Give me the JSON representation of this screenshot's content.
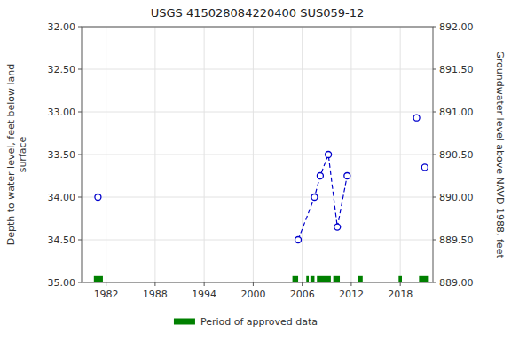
{
  "chart_data": {
    "type": "line",
    "title": "USGS 415028084220400 SUS059-12",
    "y_label": "Depth to water level, feet below land\nsurface",
    "y2_label": "Groundwater level above NAVD 1988, feet",
    "xlim": [
      1979,
      2022
    ],
    "ylim": [
      35.0,
      32.0
    ],
    "y2lim": [
      889.0,
      892.0
    ],
    "xticks": [
      1982,
      1988,
      1994,
      2000,
      2006,
      2012,
      2018
    ],
    "yticks": [
      {
        "value": 32.0,
        "label": "32.00"
      },
      {
        "value": 32.5,
        "label": "32.50"
      },
      {
        "value": 33.0,
        "label": "33.00"
      },
      {
        "value": 33.5,
        "label": "33.50"
      },
      {
        "value": 34.0,
        "label": "34.00"
      },
      {
        "value": 34.5,
        "label": "34.50"
      },
      {
        "value": 35.0,
        "label": "35.00"
      }
    ],
    "y2ticks": [
      {
        "value": 889.0,
        "label": "889.00"
      },
      {
        "value": 889.5,
        "label": "889.50"
      },
      {
        "value": 890.0,
        "label": "890.00"
      },
      {
        "value": 890.5,
        "label": "890.50"
      },
      {
        "value": 891.0,
        "label": "891.00"
      },
      {
        "value": 891.5,
        "label": "891.50"
      },
      {
        "value": 892.0,
        "label": "892.00"
      }
    ],
    "grid": true,
    "legend": "bottom",
    "series": [
      {
        "type": "scatter",
        "color": "#0000cc",
        "marker": "circle",
        "x": [
          1981.0,
          2020.0,
          2021.0
        ],
        "values": [
          34.0,
          33.07,
          33.65
        ]
      },
      {
        "type": "line",
        "color": "#0000cc",
        "marker": "circle",
        "line_style": "dashed",
        "x": [
          2005.5,
          2007.5,
          2008.2,
          2009.2,
          2010.3,
          2011.5
        ],
        "values": [
          34.5,
          34.0,
          33.75,
          33.5,
          34.35,
          33.75
        ]
      },
      {
        "type": "span",
        "name": "Period of approved data",
        "color": "#008000",
        "start": [
          1980.5,
          2004.8,
          2006.5,
          2007.0,
          2007.8,
          2009.8,
          2012.8,
          2017.8,
          2020.3
        ],
        "end": [
          1981.6,
          2005.5,
          2006.8,
          2007.5,
          2009.5,
          2010.6,
          2013.4,
          2018.2,
          2021.5
        ]
      }
    ]
  }
}
